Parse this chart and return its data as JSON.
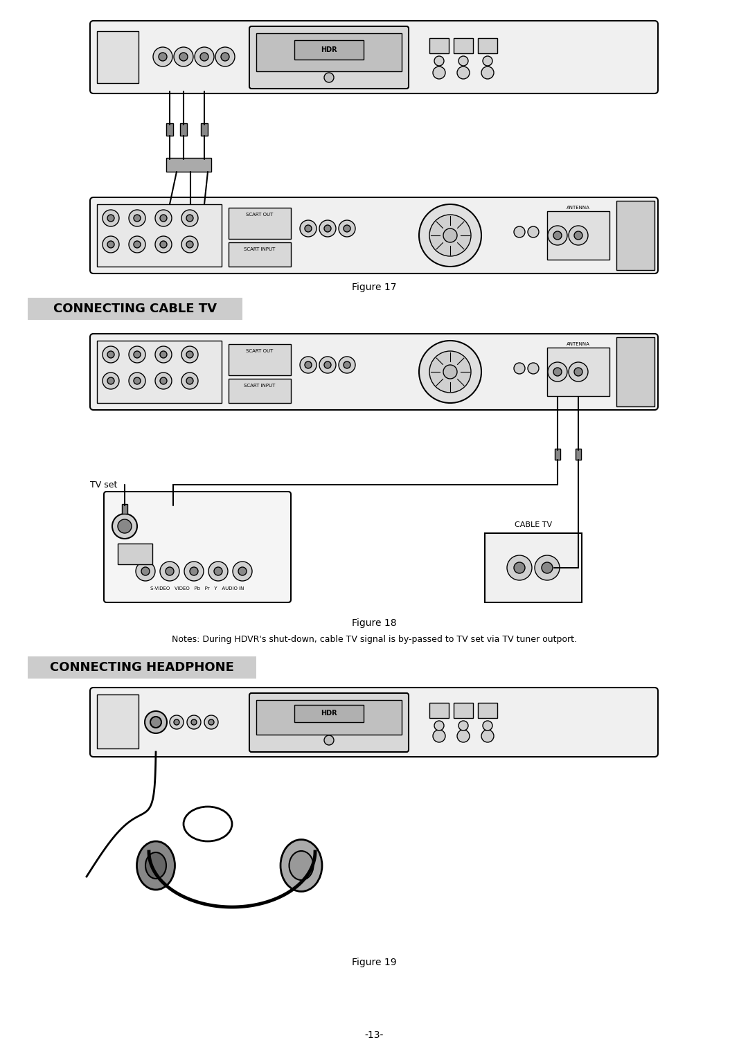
{
  "bg_color": "#ffffff",
  "page_width": 10.8,
  "page_height": 15.28,
  "figure17_caption": "Figure 17",
  "figure18_caption": "Figure 18",
  "figure19_caption": "Figure 19",
  "section1_title": "CONNECTING CABLE TV",
  "section2_title": "CONNECTING HEADPHONE",
  "notes_text": "Notes: During HDVR's shut-down, cable TV signal is by-passed to TV set via TV tuner outport.",
  "page_number": "-13-",
  "tv_set_label": "TV set",
  "cable_tv_label": "CABLE TV"
}
